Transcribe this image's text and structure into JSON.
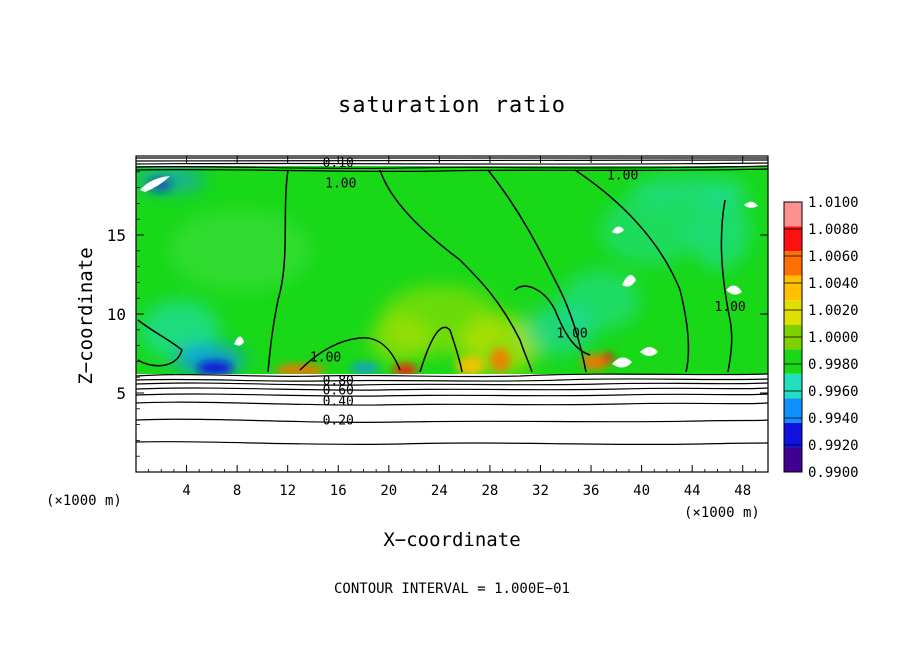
{
  "chart_data": {
    "type": "heatmap",
    "title": "saturation ratio",
    "xlabel": "X−coordinate",
    "ylabel": "Z−coordinate",
    "x_units": "(×1000 m)",
    "z_units": "(×1000 m)",
    "xlim": [
      0,
      50
    ],
    "ylim": [
      0,
      20
    ],
    "x_ticks": [
      4,
      8,
      12,
      16,
      20,
      24,
      28,
      32,
      36,
      40,
      44,
      48
    ],
    "y_ticks": [
      5,
      10,
      15
    ],
    "footnote": "CONTOUR INTERVAL = 1.000E−01",
    "colorbar": {
      "levels": [
        "1.0100",
        "1.0080",
        "1.0060",
        "1.0040",
        "1.0020",
        "1.0000",
        "0.9980",
        "0.9960",
        "0.9940",
        "0.9920",
        "0.9900"
      ],
      "colors": [
        "#ff9090",
        "#ff1010",
        "#ff7000",
        "#ffc000",
        "#e0e000",
        "#80d000",
        "#18d818",
        "#20e0c0",
        "#1090ff",
        "#1010e0",
        "#400090",
        "#6a00a0"
      ]
    },
    "contour_labels": [
      {
        "text": "1.00",
        "x": 16.2,
        "z": 18.0
      },
      {
        "text": "1.00",
        "x": 38.5,
        "z": 18.5
      },
      {
        "text": "1.00",
        "x": 34.5,
        "z": 8.5
      },
      {
        "text": "1.00",
        "x": 47.0,
        "z": 10.2
      },
      {
        "text": "1.00",
        "x": 15.0,
        "z": 7.0
      },
      {
        "text": "0.80",
        "x": 16.0,
        "z": 5.5
      },
      {
        "text": "0.60",
        "x": 16.0,
        "z": 4.9
      },
      {
        "text": "0.40",
        "x": 16.0,
        "z": 4.2
      },
      {
        "text": "0.20",
        "x": 16.0,
        "z": 3.0
      },
      {
        "text": "0.10",
        "x": 16.0,
        "z": 19.3
      }
    ],
    "lower_contour_levels_z": [
      2.0,
      3.2,
      3.8,
      4.3,
      4.8,
      5.2,
      5.6,
      6.0
    ],
    "domain_fields": {
      "saturated_layer_bottom_z": 6.3,
      "saturated_layer_top_z": 19.0,
      "background_value": 0.998
    }
  }
}
